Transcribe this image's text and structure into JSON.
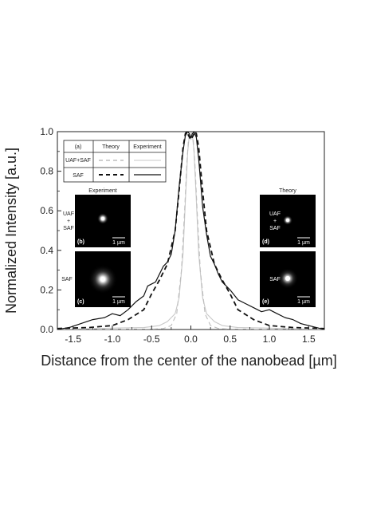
{
  "chart_data": {
    "type": "line",
    "xlabel": "Distance from the center of the nanobead [µm]",
    "ylabel": "Normalized Intensity [a.u.]",
    "xlim": [
      -1.7,
      1.7
    ],
    "ylim": [
      0,
      1.0
    ],
    "xticks": [
      "-1.5",
      "-1.0",
      "-0.5",
      "0.0",
      "0.5",
      "1.0",
      "1.5"
    ],
    "yticks": [
      "0.0",
      "0.2",
      "0.4",
      "0.6",
      "0.8",
      "1.0"
    ],
    "legend": {
      "panel_label": "(a)",
      "col_theory": "Theory",
      "col_experiment": "Experiment",
      "row_uaf_saf": "UAF+SAF",
      "row_saf": "SAF"
    },
    "series": [
      {
        "name": "UAF+SAF Theory",
        "color": "#bdbdbd",
        "style": "dashed",
        "x": [
          -1.7,
          -1.2,
          -0.8,
          -0.5,
          -0.35,
          -0.25,
          -0.18,
          -0.12,
          -0.08,
          -0.05,
          -0.03,
          0,
          0.03,
          0.05,
          0.08,
          0.12,
          0.18,
          0.25,
          0.35,
          0.5,
          0.8,
          1.2,
          1.7
        ],
        "y": [
          0,
          0,
          0,
          0.002,
          0.005,
          0.02,
          0.08,
          0.3,
          0.6,
          0.85,
          0.96,
          1.0,
          0.96,
          0.85,
          0.6,
          0.3,
          0.08,
          0.02,
          0.005,
          0.002,
          0,
          0,
          0
        ]
      },
      {
        "name": "UAF+SAF Experiment",
        "color": "#c8c8c8",
        "style": "solid",
        "x": [
          -1.7,
          -1.5,
          -1.2,
          -0.9,
          -0.6,
          -0.4,
          -0.3,
          -0.2,
          -0.15,
          -0.1,
          -0.07,
          -0.04,
          -0.02,
          0,
          0.02,
          0.04,
          0.07,
          0.1,
          0.15,
          0.2,
          0.3,
          0.4,
          0.6,
          0.9,
          1.2,
          1.5,
          1.7
        ],
        "y": [
          0,
          0.002,
          0.005,
          0.008,
          0.01,
          0.02,
          0.04,
          0.08,
          0.16,
          0.38,
          0.65,
          0.9,
          0.98,
          0.96,
          0.98,
          0.9,
          0.65,
          0.38,
          0.16,
          0.08,
          0.04,
          0.02,
          0.01,
          0.008,
          0.005,
          0.002,
          0
        ]
      },
      {
        "name": "SAF Theory",
        "color": "#111111",
        "style": "dashed",
        "x": [
          -1.7,
          -1.3,
          -1.0,
          -0.8,
          -0.6,
          -0.5,
          -0.4,
          -0.3,
          -0.2,
          -0.15,
          -0.1,
          -0.07,
          -0.05,
          -0.03,
          0,
          0.03,
          0.05,
          0.07,
          0.1,
          0.15,
          0.2,
          0.3,
          0.4,
          0.5,
          0.6,
          0.8,
          1.0,
          1.3,
          1.7
        ],
        "y": [
          0.005,
          0.01,
          0.02,
          0.05,
          0.1,
          0.18,
          0.25,
          0.33,
          0.5,
          0.7,
          0.92,
          0.99,
          1.0,
          0.98,
          0.96,
          0.98,
          1.0,
          0.99,
          0.92,
          0.7,
          0.5,
          0.33,
          0.25,
          0.18,
          0.1,
          0.05,
          0.02,
          0.01,
          0.005
        ]
      },
      {
        "name": "SAF Experiment",
        "color": "#111111",
        "style": "solid",
        "x": [
          -1.7,
          -1.55,
          -1.4,
          -1.25,
          -1.1,
          -1.0,
          -0.9,
          -0.8,
          -0.7,
          -0.6,
          -0.55,
          -0.5,
          -0.45,
          -0.4,
          -0.35,
          -0.3,
          -0.25,
          -0.2,
          -0.15,
          -0.1,
          -0.07,
          -0.04,
          -0.02,
          0,
          0.02,
          0.04,
          0.07,
          0.1,
          0.15,
          0.2,
          0.25,
          0.3,
          0.35,
          0.4,
          0.5,
          0.6,
          0.7,
          0.8,
          0.9,
          1.0,
          1.1,
          1.2,
          1.3,
          1.4,
          1.5,
          1.6,
          1.7
        ],
        "y": [
          0.0,
          0.01,
          0.03,
          0.05,
          0.06,
          0.08,
          0.07,
          0.1,
          0.14,
          0.17,
          0.22,
          0.23,
          0.24,
          0.28,
          0.32,
          0.34,
          0.38,
          0.5,
          0.72,
          0.9,
          0.98,
          1.0,
          0.99,
          0.97,
          0.99,
          1.0,
          0.97,
          0.86,
          0.62,
          0.48,
          0.37,
          0.33,
          0.28,
          0.24,
          0.2,
          0.15,
          0.13,
          0.11,
          0.09,
          0.1,
          0.08,
          0.06,
          0.05,
          0.03,
          0.02,
          0.01,
          0.0
        ]
      }
    ],
    "insets": [
      {
        "label": "UAF\n+\nSAF",
        "tag": "(b)",
        "scale": "1 µm",
        "group": "Experiment",
        "glow": "small"
      },
      {
        "label": "SAF",
        "tag": "(c)",
        "scale": "1 µm",
        "group": "Experiment",
        "glow": "large"
      },
      {
        "label": "UAF\n+\nSAF",
        "tag": "(d)",
        "scale": "1 µm",
        "group": "Theory",
        "glow": "small"
      },
      {
        "label": "SAF",
        "tag": "(e)",
        "scale": "1 µm",
        "group": "Theory",
        "glow": "large"
      }
    ],
    "inset_groups": {
      "experiment": "Experiment",
      "theory": "Theory"
    },
    "grid": false
  }
}
